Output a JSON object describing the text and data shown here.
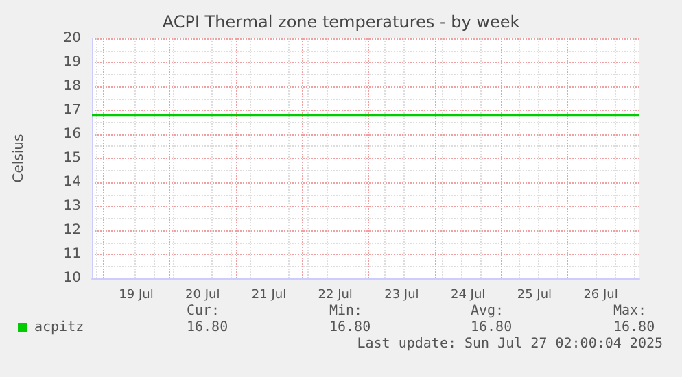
{
  "chart_data": {
    "type": "line",
    "title": "ACPI Thermal zone temperatures - by week",
    "ylabel": "Celsius",
    "x": [
      "2025-07-18T20:00",
      "2025-07-27T02:00"
    ],
    "series": [
      {
        "name": "acpitz",
        "color": "#00cc00",
        "values": [
          16.8,
          16.8
        ]
      }
    ],
    "xlim": [
      "2025-07-18T20:00",
      "2025-07-27T02:00"
    ],
    "xticks": [
      {
        "value": "2025-07-19T12:00",
        "label": "19 Jul"
      },
      {
        "value": "2025-07-20T12:00",
        "label": "20 Jul"
      },
      {
        "value": "2025-07-21T12:00",
        "label": "21 Jul"
      },
      {
        "value": "2025-07-22T12:00",
        "label": "22 Jul"
      },
      {
        "value": "2025-07-23T12:00",
        "label": "23 Jul"
      },
      {
        "value": "2025-07-24T12:00",
        "label": "24 Jul"
      },
      {
        "value": "2025-07-25T12:00",
        "label": "25 Jul"
      },
      {
        "value": "2025-07-26T12:00",
        "label": "26 Jul"
      }
    ],
    "ylim": [
      10,
      20
    ],
    "yticks": [
      10,
      11,
      12,
      13,
      14,
      15,
      16,
      17,
      18,
      19,
      20
    ],
    "grid": true,
    "legend": "bottom left",
    "marker": "none",
    "line_style": "solid",
    "annotations": [
      "Cur:",
      "Min:",
      "Avg:",
      "Max:",
      "16.80",
      "16.80",
      "16.80",
      "16.80",
      "Last update: Sun Jul 27 02:00:04 2025"
    ]
  }
}
